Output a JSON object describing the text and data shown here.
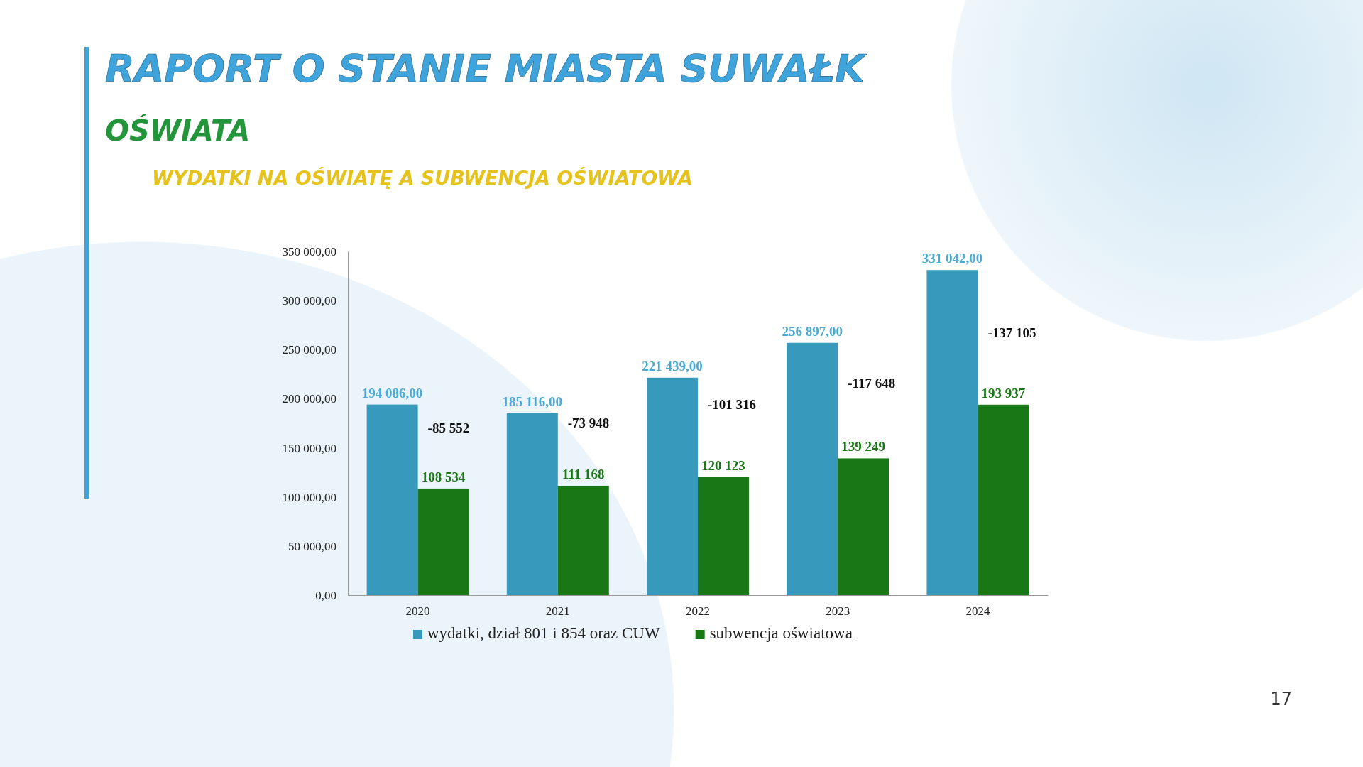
{
  "chart_data": {
    "type": "bar",
    "title": "RAPORT O STANIE MIASTA SUWAŁK",
    "subtitle": "OŚWIATA",
    "categories": [
      "2020",
      "2021",
      "2022",
      "2023",
      "2024"
    ],
    "series": [
      {
        "name": "wydatki, dział 801 i 854 oraz CUW",
        "color": "#3799bb",
        "values": [
          194086,
          185116,
          221439,
          256897,
          331042
        ],
        "value_labels": [
          "194 086,00",
          "185 116,00",
          "221 439,00",
          "256 897,00",
          "331 042,00"
        ]
      },
      {
        "name": "subwencja oświatowa",
        "color": "#1a7715",
        "values": [
          108534,
          111168,
          120123,
          139249,
          193937
        ],
        "value_labels": [
          "108 534",
          "111 168",
          "120 123",
          "139 249",
          "193 937"
        ]
      }
    ],
    "ylim": [
      0,
      350000
    ],
    "yticks": [
      {
        "value": 0,
        "label": "0,00"
      },
      {
        "value": 50000,
        "label": "50 000,00"
      },
      {
        "value": 100000,
        "label": "100 000,00"
      },
      {
        "value": 150000,
        "label": "150 000,00"
      },
      {
        "value": 200000,
        "label": "200 000,00"
      },
      {
        "value": 250000,
        "label": "250 000,00"
      },
      {
        "value": 300000,
        "label": "300 000,00"
      },
      {
        "value": 350000,
        "label": "350 000,00"
      }
    ],
    "grid": false,
    "legend": "bottom",
    "annotations": [
      "WYDATKI NA OŚWIATĘ A SUBWENCJA OŚWIATOWA",
      "17",
      {
        "text": "-85 552",
        "x": "2020",
        "y": 165700
      },
      {
        "text": "-73 948",
        "x": "2021",
        "y": 171000
      },
      {
        "text": "-101 316",
        "x": "2022",
        "y": 189600
      },
      {
        "text": "-117 648",
        "x": "2023",
        "y": 211000
      },
      {
        "text": "-137 105",
        "x": "2024",
        "y": 262300
      }
    ]
  }
}
